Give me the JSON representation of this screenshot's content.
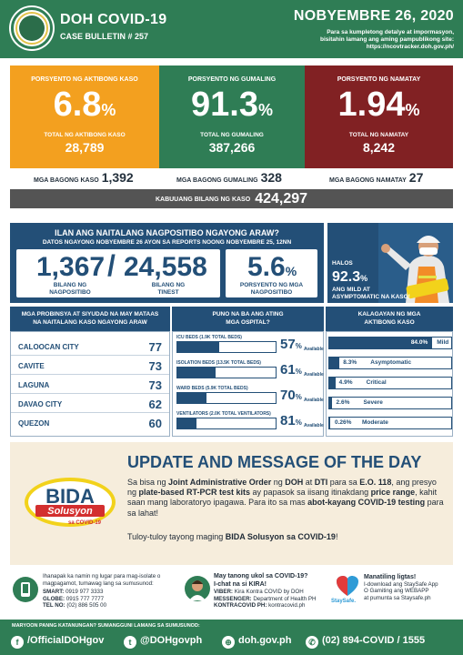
{
  "header": {
    "title": "DOH COVID-19",
    "bulletin": "CASE BULLETIN # 257",
    "date": "NOBYEMBRE 26, 2020",
    "note_line1": "Para sa kumpletong detalye at impormasyon,",
    "note_line2": "bisitahin lamang ang aming pampublikong site:",
    "note_line3": "https://ncovtracker.doh.gov.ph/"
  },
  "cards": {
    "active": {
      "title": "PORSYENTO NG AKTIBONG KASO",
      "pct": "6.8",
      "pct_sign": "%",
      "label": "TOTAL NG AKTIBONG KASO",
      "total": "28,789",
      "color": "#f3a01f"
    },
    "recovered": {
      "title": "PORSYENTO NG GUMALING",
      "pct": "91.3",
      "pct_sign": "%",
      "label": "TOTAL NG GUMALING",
      "total": "387,266",
      "color": "#2f7d55"
    },
    "deaths": {
      "title": "PORSYENTO NG NAMATAY",
      "pct": "1.94",
      "pct_sign": "%",
      "label": "TOTAL NG NAMATAY",
      "total": "8,242",
      "color": "#812123"
    }
  },
  "new_counts": {
    "cases_label": "MGA BAGONG KASO",
    "cases": "1,392",
    "recovered_label": "MGA BAGONG GUMALING",
    "recovered": "328",
    "deaths_label": "MGA BAGONG NAMATAY",
    "deaths": "27"
  },
  "total": {
    "label": "KABUUANG BILANG NG KASO",
    "value": "424,297"
  },
  "positives": {
    "title": "ILAN ANG NAITALANG NAGPOSITIBO NGAYONG ARAW?",
    "subtitle": "DATOS NGAYONG NOBYEMBRE 26 AYON SA REPORTS NOONG NOBYEMBRE 25, 12NN",
    "positive": "1,367",
    "slash": "/",
    "tested": "24,558",
    "positive_label_1": "BILANG NG",
    "positive_label_2": "NAGPOSITIBO",
    "tested_label_1": "BILANG NG",
    "tested_label_2": "TINEST",
    "rate": "5.6",
    "rate_sign": "%",
    "rate_label_1": "PORSYENTO NG MGA",
    "rate_label_2": "NAGPOSITIBO"
  },
  "asymptomatic": {
    "halos": "HALOS",
    "pct": "92.3",
    "pct_sign": "%",
    "line1": "ANG MILD AT",
    "line2": "ASYMPTOMATIC NA KASO!"
  },
  "provinces": {
    "title_1": "MGA PROBINSYA AT SIYUDAD NA MAY MATAAS",
    "title_2": "NA NAITALANG KASO NGAYONG ARAW",
    "rows": [
      {
        "name": "CALOOCAN CITY",
        "count": "77"
      },
      {
        "name": "CAVITE",
        "count": "73"
      },
      {
        "name": "LAGUNA",
        "count": "73"
      },
      {
        "name": "DAVAO CITY",
        "count": "62"
      },
      {
        "name": "QUEZON",
        "count": "60"
      }
    ]
  },
  "hospitals": {
    "title_1": "PUNO NA BA ANG ATING",
    "title_2": "MGA OSPITAL?",
    "available_label": "Available",
    "rows": [
      {
        "label": "ICU BEDS (1.9K TOTAL BEDS)",
        "pct": "57",
        "fill": 0.43
      },
      {
        "label": "ISOLATION BEDS (13.5K TOTAL BEDS)",
        "pct": "61",
        "fill": 0.39
      },
      {
        "label": "WARD BEDS (5.9K TOTAL BEDS)",
        "pct": "70",
        "fill": 0.3
      },
      {
        "label": "VENTILATORS (2.0K TOTAL VENTILATORS)",
        "pct": "81",
        "fill": 0.19
      }
    ]
  },
  "status": {
    "title_1": "KALAGAYAN NG MGA",
    "title_2": "AKTIBONG KASO",
    "rows": [
      {
        "value": "84.0%",
        "label": "Mild",
        "fill": 0.84
      },
      {
        "value": "8.3%",
        "label": "Asymptomatic",
        "fill": 0.083
      },
      {
        "value": "4.9%",
        "label": "Critical",
        "fill": 0.049
      },
      {
        "value": "2.6%",
        "label": "Severe",
        "fill": 0.026
      },
      {
        "value": "0.26%",
        "label": "Moderate",
        "fill": 0.0026
      }
    ]
  },
  "update": {
    "logo_line1": "BIDA",
    "logo_line2": "Solusyon",
    "logo_line3": "sa COVID-19",
    "title": "UPDATE AND MESSAGE OF THE DAY",
    "p1": "Sa bisa ng ",
    "b1": "Joint Administrative Order",
    "p2": " ng ",
    "b2": "DOH",
    "p3": " at ",
    "b3": "DTI",
    "p4": " para sa ",
    "b4": "E.O. 118",
    "p5": ", ang presyo ng ",
    "b5": "plate-based RT-PCR test kits",
    "p6": " ay papasok sa iisang itinakdang ",
    "b6": "price range",
    "p7": ", kahit saan mang laboratoryo ipagawa. Para ito sa mas ",
    "b7": "abot-kayang COVID-19 testing",
    "p8": " para sa lahat!",
    "foot1": "Tuloy-tuloy tayong maging ",
    "foot_b": "BIDA Solusyon sa COVID-19",
    "foot2": "!"
  },
  "contact": {
    "left_1": "Ihanapak ka namin ng lugar para mag-isolate o",
    "left_2": "magpagamot, tumawag lang sa sumusunod:",
    "smart_label": "SMART:",
    "smart": "0919 977 3333",
    "globe_label": "GLOBE:",
    "globe": "0915 777 7777",
    "tel_label": "TEL NO:",
    "tel": "(02) 886 505 00",
    "mid_title_1": "May tanong ukol sa COVID-19?",
    "mid_title_2": "I-chat na si KIRA!",
    "viber_label": "VIBER:",
    "viber": "Kira Kontra COVID by DOH",
    "messenger_label": "MESSENGER:",
    "messenger": "Department of Health PH",
    "kontra_label": "KONTRACOVID PH:",
    "kontra": "kontracovid.ph",
    "staysafe_logo": "StaySafe.",
    "right_title": "Manatiling ligtas!",
    "right_1": "I-download ang StaySafe App",
    "right_2": "O Gamiting ang WEBAPP",
    "right_3": "at pumunta sa Staysafe.ph"
  },
  "footer": {
    "question": "MARYOON PANNG KATANUNGAN? SUMANGGUNI LAMANG SA SUMUSUNOD:",
    "facebook": "/OfficialDOHgov",
    "twitter": "@DOHgovph",
    "website": "doh.gov.ph",
    "hotline": "(02) 894-COVID  /  1555"
  }
}
